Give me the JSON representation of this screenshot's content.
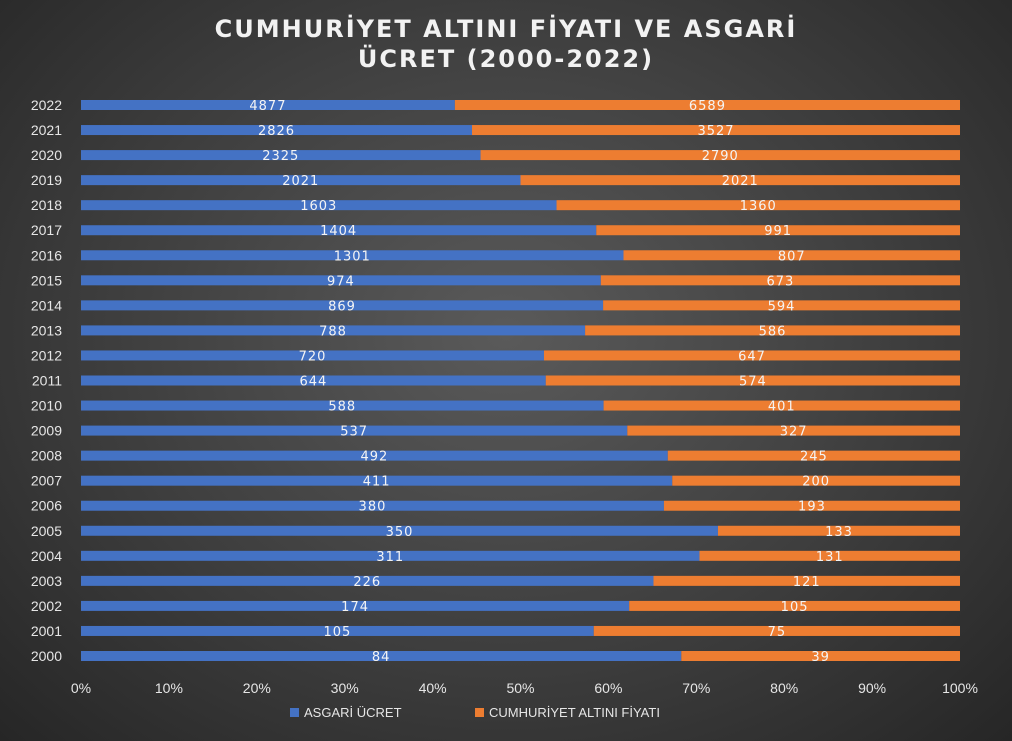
{
  "chart_data": {
    "type": "bar",
    "orientation": "horizontal",
    "stacking": "percent",
    "title_lines": [
      "CUMHURİYET ALTINI FİYATI VE ASGARİ",
      "ÜCRET (2000-2022)"
    ],
    "categories": [
      "2000",
      "2001",
      "2002",
      "2003",
      "2004",
      "2005",
      "2006",
      "2007",
      "2008",
      "2009",
      "2010",
      "2011",
      "2012",
      "2013",
      "2014",
      "2015",
      "2016",
      "2017",
      "2018",
      "2019",
      "2020",
      "2021",
      "2022"
    ],
    "series": [
      {
        "name": "ASGARİ ÜCRET",
        "color": "#4472c4",
        "values": [
          84,
          105,
          174,
          226,
          311,
          350,
          380,
          411,
          492,
          537,
          588,
          644,
          720,
          788,
          869,
          974,
          1301,
          1404,
          1603,
          2021,
          2325,
          2826,
          4877
        ]
      },
      {
        "name": "CUMHURİYET ALTINI FİYATI",
        "color": "#ed7d31",
        "values": [
          39,
          75,
          105,
          121,
          131,
          133,
          193,
          200,
          245,
          327,
          401,
          574,
          647,
          586,
          594,
          673,
          807,
          991,
          1360,
          2021,
          2790,
          3527,
          6589
        ]
      }
    ],
    "x_ticks": [
      "0%",
      "10%",
      "20%",
      "30%",
      "40%",
      "50%",
      "60%",
      "70%",
      "80%",
      "90%",
      "100%"
    ],
    "xlim": [
      0,
      100
    ],
    "grid": false,
    "legend_position": "bottom"
  }
}
